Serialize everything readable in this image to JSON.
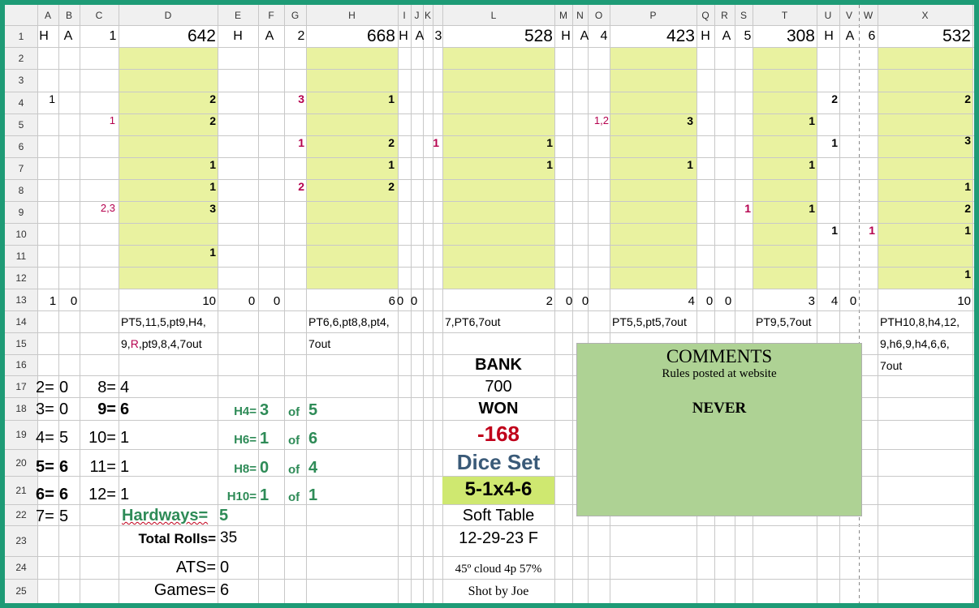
{
  "columns": [
    "A",
    "B",
    "C",
    "D",
    "E",
    "F",
    "G",
    "H",
    "I",
    "J",
    "K",
    "L",
    "M",
    "N",
    "O",
    "P",
    "Q",
    "R",
    "S",
    "T",
    "U",
    "V",
    "W",
    "X"
  ],
  "rows": [
    "1",
    "2",
    "3",
    "4",
    "5",
    "6",
    "7",
    "8",
    "9",
    "10",
    "11",
    "12",
    "13",
    "14",
    "15",
    "16",
    "17",
    "18",
    "19",
    "20",
    "21",
    "22",
    "23",
    "24",
    "25"
  ],
  "shooters": [
    {
      "h": "H",
      "a": "A",
      "num": "1",
      "score": "642",
      "tot_h": "1",
      "tot_a": "0",
      "total": "10",
      "rolls": [
        "PT5,11,5,pt9,H4,",
        "9,R,pt9,8,4,7out"
      ]
    },
    {
      "h": "H",
      "a": "A",
      "num": "2",
      "score": "668",
      "tot_h": "0",
      "tot_a": "0",
      "total": "6",
      "rolls": [
        "PT6,6,pt8,8,pt4,",
        "7out"
      ]
    },
    {
      "h": "H",
      "a": "A",
      "num": "3",
      "score": "528",
      "tot_h": "0",
      "tot_a": "0",
      "total": "2",
      "rolls": [
        "7,PT6,7out"
      ]
    },
    {
      "h": "H",
      "a": "A",
      "num": "4",
      "score": "423",
      "tot_h": "0",
      "tot_a": "0",
      "total": "4",
      "rolls": [
        "PT5,5,pt5,7out"
      ]
    },
    {
      "h": "H",
      "a": "A",
      "num": "5",
      "score": "308",
      "tot_h": "0",
      "tot_a": "0",
      "total": "3",
      "rolls": [
        "PT9,5,7out"
      ]
    },
    {
      "h": "H",
      "a": "A",
      "num": "6",
      "score": "532",
      "tot_h": "4",
      "tot_a": "0",
      "total": "10",
      "rolls": [
        "PTH10,8,h4,12,",
        "9,h6,9,h4,6,6,",
        "7out"
      ]
    }
  ],
  "grid_values": {
    "r4": [
      "1",
      "2",
      "3",
      "1",
      "2",
      "2"
    ],
    "r5": [
      "1",
      "2",
      "1,2",
      "3",
      "1"
    ],
    "r6": [
      "1",
      "2",
      "1",
      "1",
      "1",
      "3"
    ],
    "r7": [
      "1",
      "1",
      "1",
      "1",
      "1"
    ],
    "r8": [
      "1",
      "2",
      "2",
      "1"
    ],
    "r9": [
      "2,3",
      "3",
      "1",
      "1",
      "2"
    ],
    "r10": [
      "1",
      "1",
      "1"
    ],
    "r11": [
      "1"
    ],
    "r12": [
      "1"
    ]
  },
  "stats": {
    "counts": [
      {
        "k": "2=",
        "v": "0"
      },
      {
        "k": "3=",
        "v": "0"
      },
      {
        "k": "4=",
        "v": "5"
      },
      {
        "k": "5=",
        "v": "6"
      },
      {
        "k": "6=",
        "v": "6"
      },
      {
        "k": "7=",
        "v": "5"
      }
    ],
    "counts2": [
      {
        "k": "8=",
        "v": "4"
      },
      {
        "k": "9=",
        "v": "6"
      },
      {
        "k": "10=",
        "v": "1"
      },
      {
        "k": "11=",
        "v": "1"
      },
      {
        "k": "12=",
        "v": "1"
      }
    ],
    "hardways": [
      {
        "k": "H4=",
        "v": "3",
        "of": "of",
        "n": "5"
      },
      {
        "k": "H6=",
        "v": "1",
        "of": "of",
        "n": "6"
      },
      {
        "k": "H8=",
        "v": "0",
        "of": "of",
        "n": "4"
      },
      {
        "k": "H10=",
        "v": "1",
        "of": "of",
        "n": "1"
      }
    ],
    "hardways_label": "Hardways=",
    "hardways_total": "5",
    "total_rolls_label": "Total Rolls=",
    "total_rolls": "35",
    "ats_label": "ATS=",
    "ats": "0",
    "games_label": "Games=",
    "games": "6"
  },
  "bank": {
    "bank_label": "BANK",
    "bank_value": "700",
    "won_label": "WON",
    "won_value": "-168",
    "dice_set_label": "Dice Set",
    "dice_set": "5-1x4-6",
    "table": "Soft Table",
    "date": "12-29-23 F",
    "weather": "45º cloud 4p 57%",
    "shot_by": "Shot by Joe"
  },
  "comments": {
    "title": "COMMENTS",
    "line1": "Rules posted at website",
    "line2": "NEVER"
  },
  "colors": {
    "border": "#1e9b76",
    "shade": "#e9f2a0",
    "comments_bg": "#aed294",
    "red": "#b5004e",
    "green": "#2e8b57",
    "won": "#c0001a",
    "dice_set": "#3a5a78",
    "dice_bg": "#cfe870"
  }
}
